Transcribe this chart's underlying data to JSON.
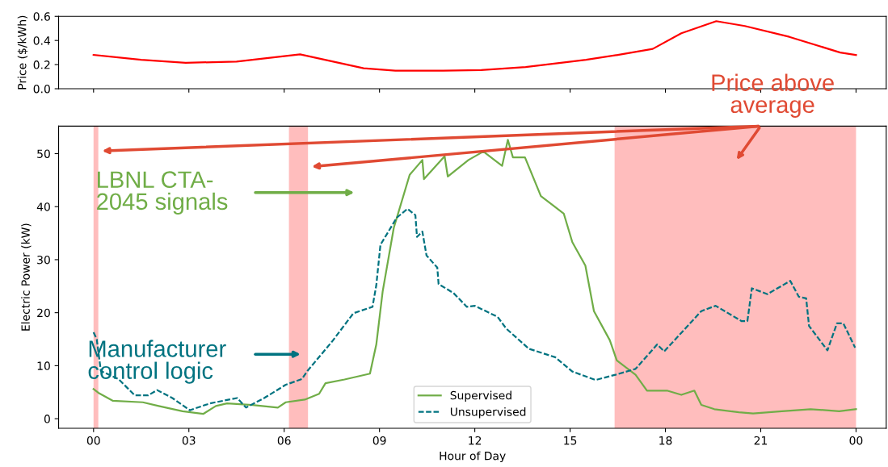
{
  "chart_data": [
    {
      "type": "line",
      "ylabel": "Price ($/kWh)",
      "xlim": [
        -1.1,
        24.95
      ],
      "ylim": [
        0,
        0.6
      ],
      "yticks": [
        {
          "value": 0,
          "label": "0.0"
        },
        {
          "value": 0.2,
          "label": "0.2"
        },
        {
          "value": 0.4,
          "label": "0.4"
        },
        {
          "value": 0.6,
          "label": "0.6"
        }
      ],
      "xticks": [
        {
          "value": 0,
          "label": null
        },
        {
          "value": 3,
          "label": null
        },
        {
          "value": 6,
          "label": null
        },
        {
          "value": 9,
          "label": null
        },
        {
          "value": 12,
          "label": null
        },
        {
          "value": 15,
          "label": null
        },
        {
          "value": 18,
          "label": null
        },
        {
          "value": 21,
          "label": null
        },
        {
          "value": 24,
          "label": null
        }
      ],
      "tick_labels": "y",
      "series": [
        {
          "color": "#ff0000",
          "x": [
            0,
            1.5,
            2.9,
            4.5,
            6.5,
            8.5,
            9.5,
            11.0,
            12.2,
            13.6,
            15.5,
            16.5,
            17.6,
            18.5,
            19.6,
            20.5,
            21.9,
            23.5,
            24
          ],
          "values": [
            0.28,
            0.24,
            0.215,
            0.225,
            0.285,
            0.17,
            0.15,
            0.15,
            0.155,
            0.18,
            0.24,
            0.28,
            0.33,
            0.46,
            0.56,
            0.52,
            0.43,
            0.3,
            0.28
          ]
        }
      ]
    },
    {
      "type": "line",
      "xlabel": "Hour of Day",
      "ylabel": "Electric Power (kW)",
      "xlim": [
        -1.1,
        24.95
      ],
      "ylim": [
        -1.8,
        55.2
      ],
      "yticks": [
        0,
        10,
        20,
        30,
        40,
        50
      ],
      "xticks": [
        {
          "value": 0,
          "label": "00"
        },
        {
          "value": 3,
          "label": "03"
        },
        {
          "value": 6,
          "label": "06"
        },
        {
          "value": 9,
          "label": "09"
        },
        {
          "value": 12,
          "label": "12"
        },
        {
          "value": 15,
          "label": "15"
        },
        {
          "value": 18,
          "label": "18"
        },
        {
          "value": 21,
          "label": "21"
        },
        {
          "value": 24,
          "label": "00"
        }
      ],
      "legend": "bottom",
      "series": [
        {
          "name": "Supervised",
          "color": "#70ad47",
          "line_style": "solid",
          "x": [
            0,
            0.15,
            0.6,
            1.55,
            2.05,
            2.8,
            3.45,
            3.85,
            4.2,
            5.0,
            5.8,
            6.05,
            6.65,
            7.1,
            7.3,
            7.9,
            8.7,
            8.9,
            9.1,
            9.45,
            9.8,
            9.95,
            10.35,
            10.4,
            11.05,
            11.15,
            11.8,
            12.27,
            12.86,
            13.04,
            13.2,
            13.58,
            14.08,
            14.8,
            15.07,
            15.48,
            15.75,
            16.25,
            16.47,
            17.06,
            17.42,
            18.05,
            18.5,
            18.91,
            19.13,
            19.54,
            20.31,
            20.76,
            21.67,
            22.57,
            23.47,
            24
          ],
          "values": [
            5.6,
            4.9,
            3.4,
            3.1,
            2.4,
            1.4,
            0.9,
            2.4,
            2.9,
            2.6,
            2.1,
            3.1,
            3.6,
            4.7,
            6.7,
            7.4,
            8.5,
            14,
            24,
            36,
            43,
            46,
            48.8,
            45.2,
            49.5,
            45.7,
            48.8,
            50.4,
            47.7,
            52.6,
            49.3,
            49.3,
            42,
            38.7,
            33.3,
            28.9,
            20.3,
            14.8,
            11.0,
            8.3,
            5.3,
            5.3,
            4.5,
            5.3,
            2.6,
            1.8,
            1.2,
            1.0,
            1.4,
            1.8,
            1.4,
            1.8
          ]
        },
        {
          "name": "Unsupervised",
          "color": "#007380",
          "line_style": "dashed",
          "x": [
            0,
            0.1,
            0.23,
            0.78,
            1.3,
            1.72,
            2.0,
            2.48,
            3.03,
            3.67,
            4.52,
            4.8,
            5.37,
            6.05,
            6.56,
            6.73,
            7.5,
            8.18,
            8.78,
            8.9,
            9.03,
            9.54,
            9.88,
            10.13,
            10.18,
            10.35,
            10.48,
            10.82,
            10.86,
            11.33,
            11.75,
            12.0,
            12.72,
            12.99,
            13.7,
            14.53,
            15.07,
            15.8,
            16.43,
            17.06,
            17.74,
            17.96,
            18.41,
            19.13,
            19.58,
            20.4,
            20.58,
            20.72,
            21.21,
            21.93,
            22.2,
            22.43,
            22.52,
            23.1,
            23.4,
            23.6,
            23.97
          ],
          "values": [
            16.3,
            15,
            9,
            7.5,
            4.4,
            4.4,
            5.4,
            3.9,
            1.6,
            2.9,
            3.9,
            2.1,
            3.9,
            6.4,
            7.5,
            9,
            14.5,
            19.9,
            21.1,
            25.2,
            32.8,
            37.9,
            39.6,
            38.4,
            34.3,
            35.3,
            30.8,
            28.5,
            25.4,
            23.7,
            21.1,
            21.3,
            19.2,
            17.0,
            13.2,
            11.6,
            8.9,
            7.3,
            8.3,
            9.4,
            14,
            12.7,
            15.6,
            20.3,
            21.3,
            18.4,
            18.4,
            24.6,
            23.5,
            26,
            23,
            22.7,
            17.5,
            12.9,
            18,
            18,
            13.4
          ]
        }
      ],
      "bands": [
        {
          "axis": "x",
          "from": 0,
          "to": 0.15,
          "color": "#ff9999"
        },
        {
          "axis": "x",
          "from": 6.15,
          "to": 6.75,
          "color": "#ff9999"
        },
        {
          "axis": "x",
          "from": 16.4,
          "to": 24,
          "color": "#ff9999"
        }
      ],
      "annotations": [
        "Price above\naverage",
        "LBNL CTA-\n2045 signals",
        "Manufacturer\ncontrol logic"
      ]
    }
  ]
}
